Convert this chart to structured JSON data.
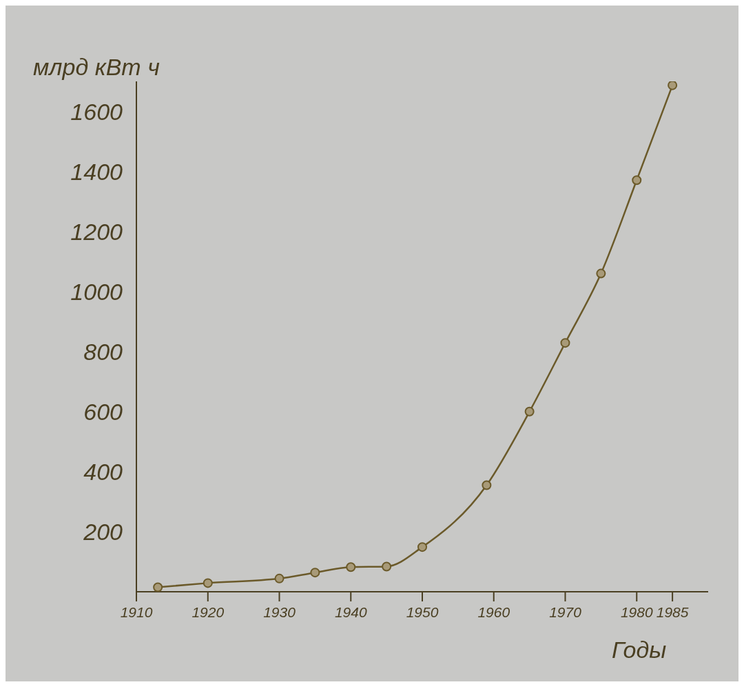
{
  "chart_data": {
    "type": "line",
    "ylabel": "млрд кВт ч",
    "xlabel": "Годы",
    "x": [
      1913,
      1920,
      1930,
      1935,
      1940,
      1945,
      1950,
      1959,
      1965,
      1970,
      1975,
      1980,
      1985
    ],
    "series": [
      {
        "color": "#6b5a2a",
        "values": [
          15,
          29,
          44,
          64,
          82,
          84,
          149,
          355,
          600,
          829,
          1060,
          1371,
          1687
        ]
      }
    ],
    "xlim": [
      1910,
      1990
    ],
    "xticks": [
      1910,
      1920,
      1930,
      1940,
      1950,
      1960,
      1970,
      1980,
      1985
    ],
    "ylim": [
      0,
      1700
    ],
    "yticks": [
      200,
      400,
      600,
      800,
      1000,
      1200,
      1400,
      1600
    ],
    "grid": false,
    "legend": false,
    "marker": "circle",
    "line_style": "solid"
  }
}
